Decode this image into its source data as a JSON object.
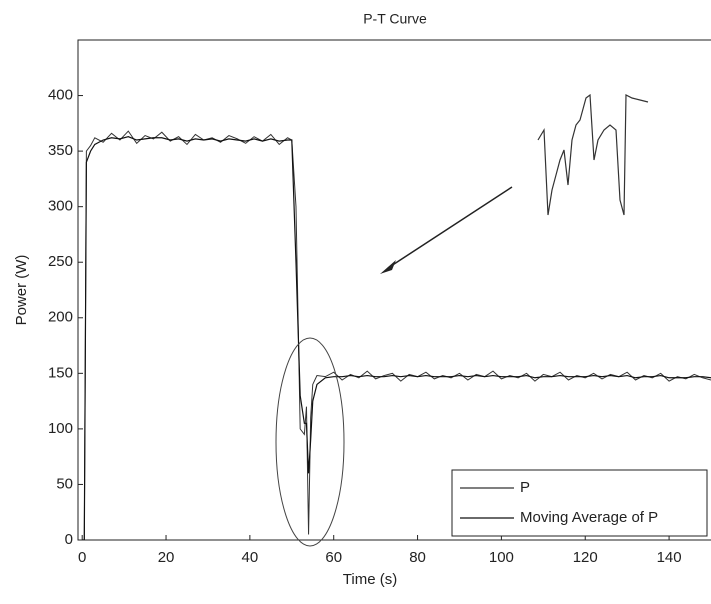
{
  "chart_data": {
    "type": "line",
    "title": "P-T Curve",
    "x_label": "Time (s)",
    "y_label": "Power (W)",
    "x": [
      0,
      0.5,
      1,
      2,
      3,
      5,
      7,
      9,
      11,
      13,
      15,
      17,
      19,
      21,
      23,
      25,
      27,
      29,
      31,
      33,
      35,
      37,
      39,
      41,
      43,
      45,
      47,
      49,
      50,
      51,
      52,
      53,
      53.5,
      54,
      54.5,
      55,
      56,
      58,
      60,
      62,
      64,
      66,
      68,
      70,
      72,
      74,
      76,
      78,
      80,
      82,
      84,
      86,
      88,
      90,
      92,
      94,
      96,
      98,
      100,
      102,
      104,
      106,
      108,
      110,
      112,
      114,
      116,
      118,
      120,
      122,
      124,
      126,
      128,
      130,
      132,
      134,
      136,
      138,
      140,
      142,
      144,
      146,
      148,
      150
    ],
    "series": [
      {
        "name": "P",
        "color": "#333333",
        "values": [
          0,
          0,
          350,
          355,
          362,
          358,
          366,
          360,
          368,
          357,
          364,
          361,
          367,
          359,
          363,
          356,
          365,
          360,
          362,
          358,
          364,
          361,
          357,
          363,
          359,
          365,
          356,
          362,
          360,
          300,
          100,
          95,
          120,
          5,
          110,
          140,
          148,
          147,
          151,
          144,
          149,
          146,
          152,
          145,
          148,
          150,
          143,
          149,
          147,
          151,
          145,
          148,
          146,
          150,
          144,
          149,
          147,
          152,
          145,
          148,
          146,
          150,
          143,
          149,
          147,
          151,
          144,
          148,
          146,
          150,
          145,
          149,
          147,
          151,
          144,
          148,
          146,
          150,
          143,
          147,
          145,
          149,
          146,
          144
        ]
      },
      {
        "name": "Moving Average of P",
        "color": "#111111",
        "values": [
          0,
          0,
          340,
          350,
          356,
          360,
          362,
          361,
          363,
          360,
          361,
          362,
          362,
          360,
          361,
          359,
          361,
          360,
          361,
          359,
          361,
          360,
          359,
          361,
          359,
          361,
          359,
          360,
          360,
          250,
          130,
          105,
          105,
          60,
          90,
          125,
          140,
          146,
          147,
          147,
          148,
          147,
          148,
          147,
          147,
          148,
          147,
          148,
          147,
          148,
          147,
          147,
          147,
          148,
          147,
          148,
          147,
          148,
          147,
          147,
          147,
          148,
          146,
          147,
          147,
          148,
          147,
          147,
          147,
          148,
          147,
          148,
          147,
          148,
          146,
          147,
          147,
          148,
          146,
          146,
          146,
          147,
          147,
          146
        ]
      }
    ],
    "xlim": [
      -1,
      150
    ],
    "xticks": [
      0,
      20,
      40,
      60,
      80,
      100,
      120,
      140
    ],
    "ylim": [
      0,
      450
    ],
    "yticks": [
      0,
      50,
      100,
      150,
      200,
      250,
      300,
      350,
      400
    ],
    "legend": "lower right"
  }
}
